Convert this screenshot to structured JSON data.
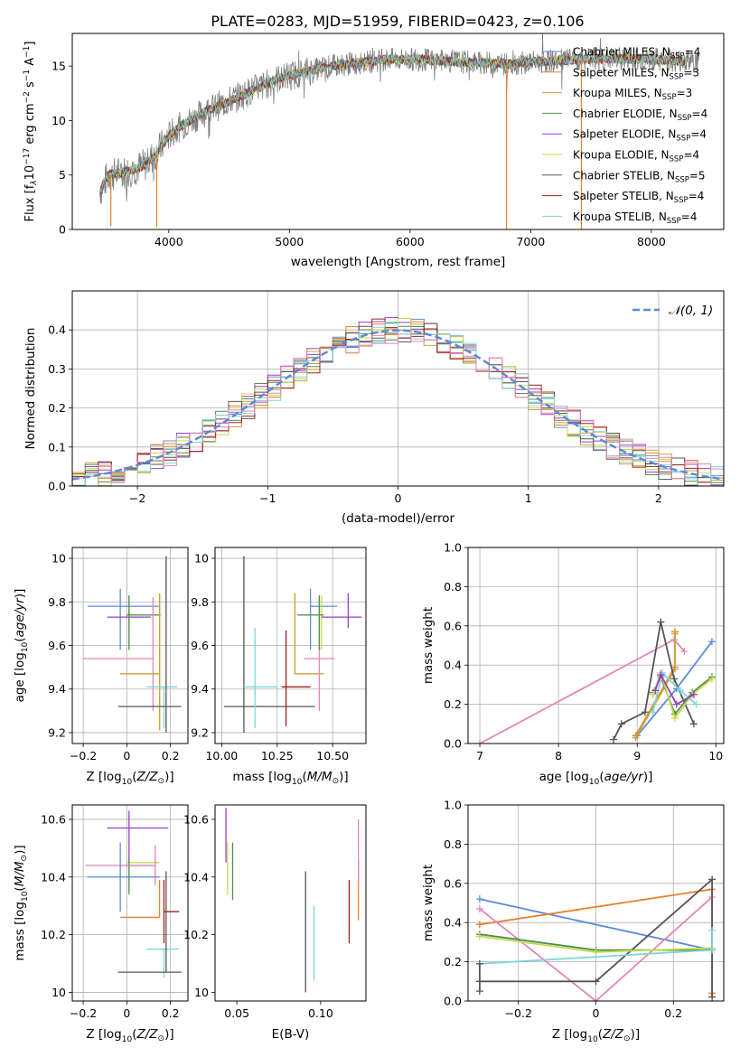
{
  "title": "PLATE=0283, MJD=51959, FIBERID=0423, z=0.106",
  "colors": {
    "chabrier_miles": "#5b8bd6",
    "salpeter_miles": "#e8802a",
    "kroupa_miles": "#c9a43a",
    "chabrier_elodie": "#4f8f4f",
    "salpeter_elodie": "#9b3fc7",
    "kroupa_elodie": "#c7d94a",
    "chabrier_stelib": "#555555",
    "salpeter_stelib": "#a02020",
    "kroupa_stelib": "#7fd6d6",
    "pink": "#e585b8",
    "normal_curve": "#5b8bd6"
  },
  "chart_data": [
    {
      "id": "spectrum",
      "type": "line",
      "xlabel": "wavelength [Angstrom, rest frame]",
      "ylabel": "Flux [f_λ 10^-17 erg cm^-2 s^-1 A^-1]",
      "ylabel_parts": {
        "pre": "Flux [f",
        "sub": "λ",
        "mid": "10",
        "sup1": "−17",
        "tail1": " erg cm",
        "sup2": "−2",
        "tail2": " s",
        "sup3": "−1",
        "tail3": " A",
        "sup4": "−1",
        "end": "]"
      },
      "xlim": [
        3200,
        8600
      ],
      "ylim": [
        0,
        18
      ],
      "xticks": [
        4000,
        5000,
        6000,
        7000,
        8000
      ],
      "yticks": [
        0,
        5,
        10,
        15
      ],
      "grid": false,
      "legend_position": "top-right",
      "legend": [
        {
          "label": "Chabrier MILES, N",
          "n": "=4",
          "color_key": "chabrier_miles"
        },
        {
          "label": "Salpeter MILES, N",
          "n": "=3",
          "color_key": "salpeter_miles"
        },
        {
          "label": "Kroupa MILES, N",
          "n": "=3",
          "color_key": "kroupa_miles"
        },
        {
          "label": "Chabrier ELODIE, N",
          "n": "=4",
          "color_key": "chabrier_elodie"
        },
        {
          "label": "Salpeter ELODIE, N",
          "n": "=4",
          "color_key": "salpeter_elodie"
        },
        {
          "label": "Kroupa ELODIE, N",
          "n": "=4",
          "color_key": "kroupa_elodie"
        },
        {
          "label": "Chabrier STELIB, N",
          "n": "=5",
          "color_key": "chabrier_stelib"
        },
        {
          "label": "Salpeter STELIB, N",
          "n": "=4",
          "color_key": "salpeter_stelib"
        },
        {
          "label": "Kroupa STELIB, N",
          "n": "=4",
          "color_key": "kroupa_stelib"
        }
      ],
      "ssp_sub": "SSP",
      "continuum": [
        [
          3430,
          3.5
        ],
        [
          3500,
          5.0
        ],
        [
          3650,
          5.3
        ],
        [
          3800,
          5.9
        ],
        [
          3900,
          7.0
        ],
        [
          4000,
          8.6
        ],
        [
          4100,
          9.5
        ],
        [
          4300,
          10.8
        ],
        [
          4500,
          11.8
        ],
        [
          4700,
          12.8
        ],
        [
          4900,
          13.8
        ],
        [
          5100,
          14.4
        ],
        [
          5300,
          14.9
        ],
        [
          5500,
          15.2
        ],
        [
          5800,
          15.6
        ],
        [
          6100,
          15.6
        ],
        [
          6400,
          15.4
        ],
        [
          6800,
          15.2
        ],
        [
          7200,
          15.5
        ],
        [
          7600,
          15.7
        ],
        [
          8000,
          15.6
        ],
        [
          8400,
          15.4
        ]
      ],
      "drops": [
        [
          3520,
          0.3
        ],
        [
          3900,
          0.2
        ],
        [
          6800,
          0.0
        ],
        [
          7420,
          0.0
        ]
      ]
    },
    {
      "id": "residuals",
      "type": "histogram",
      "xlabel": "(data-model)/error",
      "ylabel": "Normed distribution",
      "xlim": [
        -2.5,
        2.5
      ],
      "ylim": [
        0,
        0.5
      ],
      "xticks": [
        -2,
        -1,
        0,
        1,
        2
      ],
      "yticks": [
        0.0,
        0.1,
        0.2,
        0.3,
        0.4
      ],
      "grid": true,
      "legend_position": "top-right",
      "normal_label": "𝒩(0, 1)",
      "normal_sigma": 1.0
    },
    {
      "id": "z_age",
      "type": "errorbar",
      "xlabel": "Z [log10(Z/Z☉)]",
      "ylabel": "age [log10(age/yr)]",
      "xlim": [
        -0.25,
        0.28
      ],
      "ylim": [
        9.15,
        10.05
      ],
      "xticks": [
        -0.2,
        0.0,
        0.2
      ],
      "yticks": [
        9.2,
        9.4,
        9.6,
        9.8,
        10.0
      ],
      "grid": true,
      "points": [
        {
          "color_key": "chabrier_miles",
          "x": -0.03,
          "xerr": [
            0.15,
            0.18
          ],
          "y": 9.78,
          "yerr": [
            0.2,
            0.08
          ]
        },
        {
          "color_key": "salpeter_elodie",
          "x": 0.01,
          "xerr": [
            0.1,
            0.1
          ],
          "y": 9.73,
          "yerr": [
            0.05,
            0.1
          ]
        },
        {
          "color_key": "kroupa_elodie",
          "x": 0.01,
          "xerr": [
            0.01,
            0.15
          ],
          "y": 9.74,
          "yerr": [
            0.16,
            0.09
          ]
        },
        {
          "color_key": "chabrier_elodie",
          "x": 0.01,
          "xerr": [
            0.01,
            0.14
          ],
          "y": 9.74,
          "yerr": [
            0.16,
            0.09
          ]
        },
        {
          "color_key": "pink",
          "x": 0.12,
          "xerr": [
            0.32,
            0.0
          ],
          "y": 9.54,
          "yerr": [
            0.24,
            0.28
          ]
        },
        {
          "color_key": "salpeter_miles",
          "x": 0.15,
          "xerr": [
            0.18,
            0.0
          ],
          "y": 9.47,
          "yerr": [
            0.26,
            0.37
          ]
        },
        {
          "color_key": "kroupa_miles",
          "x": 0.15,
          "xerr": [
            0.18,
            0.0
          ],
          "y": 9.47,
          "yerr": [
            0.26,
            0.37
          ]
        },
        {
          "color_key": "kroupa_stelib",
          "x": 0.17,
          "xerr": [
            0.08,
            0.06
          ],
          "y": 9.41,
          "yerr": [
            0.19,
            0.0
          ]
        },
        {
          "color_key": "chabrier_stelib",
          "x": 0.18,
          "xerr": [
            0.22,
            0.07
          ],
          "y": 9.32,
          "yerr": [
            0.12,
            0.69
          ]
        }
      ]
    },
    {
      "id": "mass_age",
      "type": "errorbar",
      "xlabel": "mass [log10(M/M☉)]",
      "ylabel": "",
      "xlim": [
        9.97,
        10.65
      ],
      "ylim": [
        9.15,
        10.05
      ],
      "xticks": [
        10.0,
        10.25,
        10.5
      ],
      "xtick_labels": [
        "10.00",
        "10.25",
        "10.50"
      ],
      "yticks": [
        9.2,
        9.4,
        9.6,
        9.8,
        10.0
      ],
      "grid": true,
      "points": [
        {
          "color_key": "chabrier_stelib",
          "x": 10.1,
          "xerr": [
            0.09,
            0.32
          ],
          "y": 9.32,
          "yerr": [
            0.12,
            0.69
          ]
        },
        {
          "color_key": "kroupa_stelib",
          "x": 10.15,
          "xerr": [
            0.05,
            0.1
          ],
          "y": 9.41,
          "yerr": [
            0.19,
            0.27
          ]
        },
        {
          "color_key": "salpeter_stelib",
          "x": 10.29,
          "xerr": [
            0.02,
            0.11
          ],
          "y": 9.41,
          "yerr": [
            0.18,
            0.26
          ]
        },
        {
          "color_key": "salpeter_miles",
          "x": 10.33,
          "xerr": [
            0.0,
            0.13
          ],
          "y": 9.47,
          "yerr": [
            0.0,
            0.37
          ]
        },
        {
          "color_key": "kroupa_miles",
          "x": 10.33,
          "xerr": [
            0.0,
            0.13
          ],
          "y": 9.47,
          "yerr": [
            0.0,
            0.37
          ]
        },
        {
          "color_key": "chabrier_miles",
          "x": 10.4,
          "xerr": [
            0.0,
            0.12
          ],
          "y": 9.78,
          "yerr": [
            0.2,
            0.08
          ]
        },
        {
          "color_key": "pink",
          "x": 10.44,
          "xerr": [
            0.07,
            0.07
          ],
          "y": 9.54,
          "yerr": [
            0.24,
            0.28
          ]
        },
        {
          "color_key": "kroupa_elodie",
          "x": 10.45,
          "xerr": [
            0.1,
            0.0
          ],
          "y": 9.74,
          "yerr": [
            0.16,
            0.09
          ]
        },
        {
          "color_key": "chabrier_elodie",
          "x": 10.44,
          "xerr": [
            0.1,
            0.02
          ],
          "y": 9.74,
          "yerr": [
            0.16,
            0.09
          ]
        },
        {
          "color_key": "salpeter_elodie",
          "x": 10.57,
          "xerr": [
            0.12,
            0.06
          ],
          "y": 9.73,
          "yerr": [
            0.05,
            0.11
          ]
        }
      ]
    },
    {
      "id": "age_weight",
      "type": "line",
      "xlabel": "age [log10(age/yr)]",
      "ylabel": "mass weight",
      "xlim": [
        6.85,
        10.1
      ],
      "ylim": [
        0,
        1.0
      ],
      "xticks": [
        7,
        8,
        9,
        10
      ],
      "yticks": [
        0.0,
        0.2,
        0.4,
        0.6,
        0.8,
        1.0
      ],
      "grid": true,
      "series": [
        {
          "color_key": "pink",
          "x": [
            7.0,
            9.47,
            9.6
          ],
          "y": [
            0.0,
            0.53,
            0.47
          ]
        },
        {
          "color_key": "chabrier_miles",
          "x": [
            9.0,
            9.5,
            9.95
          ],
          "y": [
            0.04,
            0.28,
            0.52
          ]
        },
        {
          "color_key": "salpeter_miles",
          "x": [
            8.98,
            9.48,
            9.48
          ],
          "y": [
            0.04,
            0.39,
            0.57
          ]
        },
        {
          "color_key": "kroupa_miles",
          "x": [
            8.98,
            9.48,
            9.48
          ],
          "y": [
            0.03,
            0.38,
            0.56
          ]
        },
        {
          "color_key": "chabrier_stelib",
          "x": [
            8.7,
            8.8,
            9.1,
            9.3,
            9.47,
            9.72
          ],
          "y": [
            0.02,
            0.1,
            0.16,
            0.62,
            0.33,
            0.1
          ]
        },
        {
          "color_key": "chabrier_elodie",
          "x": [
            9.2,
            9.3,
            9.48,
            9.7,
            9.95
          ],
          "y": [
            0.26,
            0.34,
            0.15,
            0.26,
            0.34
          ]
        },
        {
          "color_key": "kroupa_elodie",
          "x": [
            9.2,
            9.3,
            9.48,
            9.7,
            9.95
          ],
          "y": [
            0.25,
            0.36,
            0.13,
            0.25,
            0.33
          ]
        },
        {
          "color_key": "kroupa_stelib",
          "x": [
            9.2,
            9.32,
            9.55,
            9.75
          ],
          "y": [
            0.16,
            0.36,
            0.27,
            0.2
          ]
        },
        {
          "color_key": "salpeter_elodie",
          "x": [
            9.23,
            9.3,
            9.5,
            9.72
          ],
          "y": [
            0.27,
            0.35,
            0.2,
            0.25
          ]
        }
      ]
    },
    {
      "id": "z_mass",
      "type": "errorbar",
      "xlabel": "Z [log10(Z/Z☉)]",
      "ylabel": "mass [log10(M/M☉)]",
      "xlim": [
        -0.25,
        0.28
      ],
      "ylim": [
        9.97,
        10.65
      ],
      "xticks": [
        -0.2,
        0.0,
        0.2
      ],
      "yticks": [
        10.0,
        10.2,
        10.4,
        10.6
      ],
      "grid": true,
      "points": [
        {
          "color_key": "salpeter_elodie",
          "x": 0.01,
          "xerr": [
            0.1,
            0.18
          ],
          "y": 10.57,
          "yerr": [
            0.12,
            0.06
          ]
        },
        {
          "color_key": "kroupa_elodie",
          "x": 0.01,
          "xerr": [
            0.01,
            0.14
          ],
          "y": 10.45,
          "yerr": [
            0.1,
            0.0
          ]
        },
        {
          "color_key": "chabrier_elodie",
          "x": 0.01,
          "xerr": [
            0.02,
            0.12
          ],
          "y": 10.44,
          "yerr": [
            0.1,
            0.02
          ]
        },
        {
          "color_key": "pink",
          "x": 0.13,
          "xerr": [
            0.32,
            0.0
          ],
          "y": 10.44,
          "yerr": [
            0.07,
            0.07
          ]
        },
        {
          "color_key": "chabrier_miles",
          "x": -0.03,
          "xerr": [
            0.15,
            0.18
          ],
          "y": 10.4,
          "yerr": [
            0.12,
            0.12
          ]
        },
        {
          "color_key": "salpeter_miles",
          "x": 0.15,
          "xerr": [
            0.18,
            0.0
          ],
          "y": 10.26,
          "yerr": [
            0.0,
            0.13
          ]
        },
        {
          "color_key": "salpeter_stelib",
          "x": 0.17,
          "xerr": [
            0.0,
            0.07
          ],
          "y": 10.28,
          "yerr": [
            0.11,
            0.11
          ]
        },
        {
          "color_key": "kroupa_stelib",
          "x": 0.17,
          "xerr": [
            0.08,
            0.07
          ],
          "y": 10.15,
          "yerr": [
            0.1,
            0.0
          ]
        },
        {
          "color_key": "chabrier_stelib",
          "x": 0.18,
          "xerr": [
            0.22,
            0.07
          ],
          "y": 10.07,
          "yerr": [
            0.0,
            0.35
          ]
        }
      ]
    },
    {
      "id": "ebv_mass",
      "type": "errorbar",
      "xlabel": "E(B-V)",
      "ylabel": "",
      "xlim": [
        0.037,
        0.127
      ],
      "ylim": [
        9.97,
        10.65
      ],
      "xticks": [
        0.05,
        0.1
      ],
      "xtick_labels": [
        "0.05",
        "0.10"
      ],
      "yticks": [
        10.0,
        10.2,
        10.4,
        10.6
      ],
      "grid": false,
      "points": [
        {
          "color_key": "salpeter_elodie",
          "x": 0.0435,
          "xerr": [
            0,
            0
          ],
          "y": 10.57,
          "yerr": [
            0.12,
            0.07
          ]
        },
        {
          "color_key": "kroupa_elodie",
          "x": 0.0445,
          "xerr": [
            0,
            0
          ],
          "y": 10.44,
          "yerr": [
            0.1,
            0.08
          ]
        },
        {
          "color_key": "chabrier_elodie",
          "x": 0.0475,
          "xerr": [
            0,
            0
          ],
          "y": 10.42,
          "yerr": [
            0.1,
            0.1
          ]
        },
        {
          "color_key": "chabrier_stelib",
          "x": 0.091,
          "xerr": [
            0,
            0
          ],
          "y": 10.2,
          "yerr": [
            0.2,
            0.22
          ]
        },
        {
          "color_key": "kroupa_stelib",
          "x": 0.096,
          "xerr": [
            0,
            0
          ],
          "y": 10.12,
          "yerr": [
            0.08,
            0.18
          ]
        },
        {
          "color_key": "salpeter_stelib",
          "x": 0.117,
          "xerr": [
            0,
            0
          ],
          "y": 10.28,
          "yerr": [
            0.11,
            0.11
          ]
        },
        {
          "color_key": "salpeter_miles",
          "x": 0.1225,
          "xerr": [
            0,
            0
          ],
          "y": 10.34,
          "yerr": [
            0.09,
            0.12
          ]
        },
        {
          "color_key": "pink",
          "x": 0.1225,
          "xerr": [
            0,
            0
          ],
          "y": 10.43,
          "yerr": [
            0.05,
            0.17
          ]
        }
      ]
    },
    {
      "id": "z_weight",
      "type": "line",
      "xlabel": "Z [log10(Z/Z☉)]",
      "ylabel": "mass weight",
      "xlim": [
        -0.33,
        0.33
      ],
      "ylim": [
        0,
        1.0
      ],
      "xticks": [
        -0.2,
        0.0,
        0.2
      ],
      "yticks": [
        0.0,
        0.2,
        0.4,
        0.6,
        0.8,
        1.0
      ],
      "grid": true,
      "series": [
        {
          "color_key": "chabrier_miles",
          "x": [
            -0.3,
            0.3
          ],
          "y": [
            0.52,
            0.26
          ]
        },
        {
          "color_key": "salpeter_miles",
          "x": [
            -0.3,
            0.3,
            0.3
          ],
          "y": [
            0.39,
            0.57,
            0.04
          ]
        },
        {
          "color_key": "pink",
          "x": [
            -0.3,
            0.0,
            0.3,
            0.3
          ],
          "y": [
            0.47,
            0.0,
            0.53,
            0.02
          ]
        },
        {
          "color_key": "chabrier_stelib",
          "x": [
            -0.3,
            0.0,
            0.3,
            0.3
          ],
          "y": [
            0.1,
            0.1,
            0.62,
            0.02
          ]
        },
        {
          "color_key": "chabrier_elodie",
          "x": [
            -0.3,
            0.0,
            0.3
          ],
          "y": [
            0.34,
            0.26,
            0.26
          ]
        },
        {
          "color_key": "kroupa_elodie",
          "x": [
            -0.3,
            0.0,
            0.3
          ],
          "y": [
            0.33,
            0.25,
            0.27
          ]
        },
        {
          "color_key": "kroupa_stelib",
          "x": [
            -0.3,
            0.3,
            0.3
          ],
          "y": [
            0.19,
            0.26,
            0.36
          ]
        },
        {
          "color_key": "chabrier_stelib",
          "x": [
            -0.3,
            -0.3
          ],
          "y": [
            0.05,
            0.19
          ]
        }
      ]
    }
  ]
}
